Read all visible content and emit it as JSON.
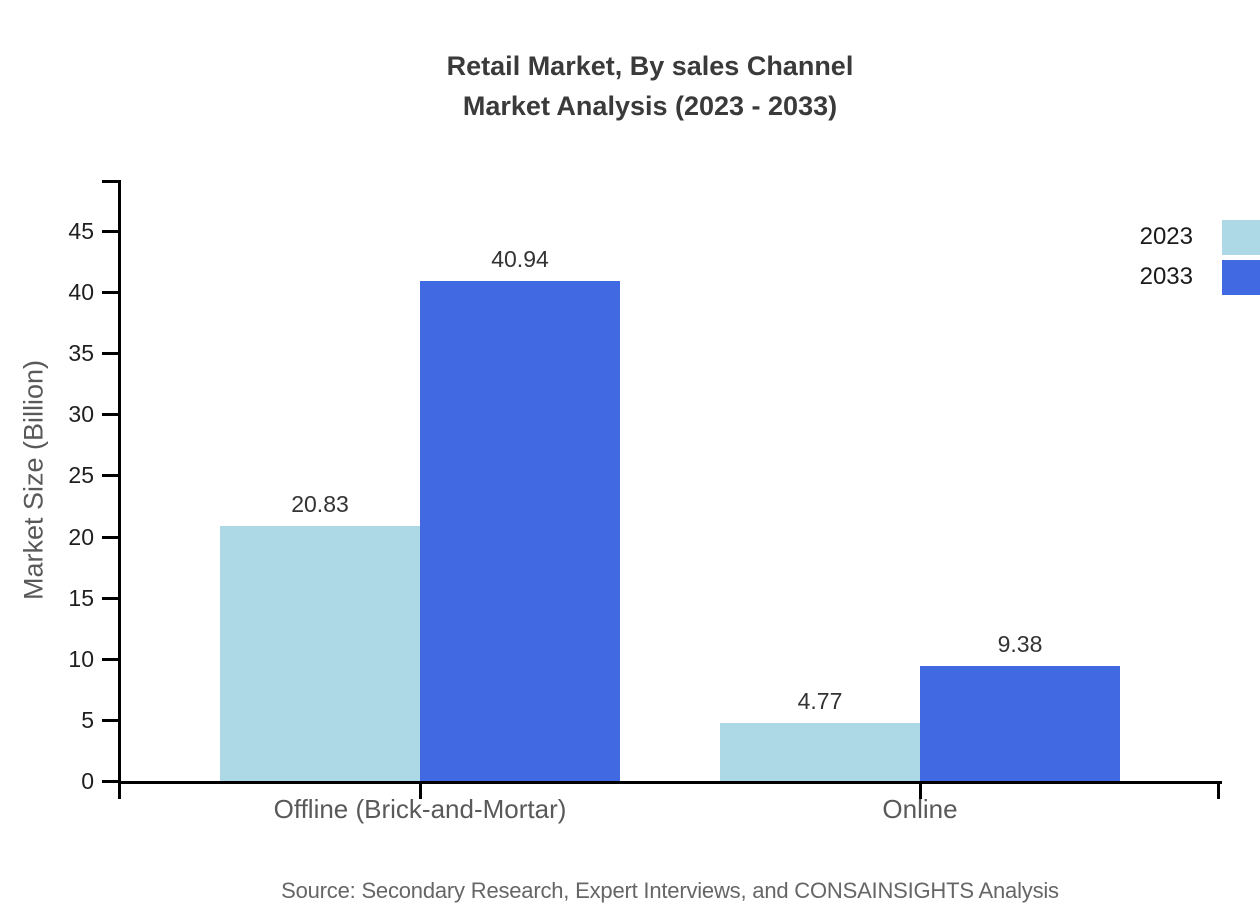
{
  "title": {
    "line1": "Retail Market, By sales Channel",
    "line2": "Market Analysis (2023 - 2033)"
  },
  "source": {
    "text": "Source: Secondary Research, Expert Interviews, and CONSAINSIGHTS Analysis"
  },
  "colors": {
    "series_2023": "#ADD8E6",
    "series_2033": "#4169E1",
    "axis": "#000000",
    "title_text": "#3A3A3A",
    "axis_title_text": "#595959",
    "tick_label_text": "#1F1F1F",
    "value_label_text": "#333333",
    "source_text": "#666666"
  },
  "chart_data": {
    "type": "bar",
    "title": "Retail Market, By sales Channel Market Analysis (2023 - 2033)",
    "categories": [
      "Offline (Brick-and-Mortar)",
      "Online"
    ],
    "series": [
      {
        "name": "2023",
        "color": "#ADD8E6",
        "values": [
          20.83,
          4.77
        ]
      },
      {
        "name": "2033",
        "color": "#4169E1",
        "values": [
          40.94,
          9.38
        ]
      }
    ],
    "value_labels": [
      [
        "20.83",
        "4.77"
      ],
      [
        "40.94",
        "9.38"
      ]
    ],
    "xlabel": "",
    "ylabel": "Market Size (Billion)",
    "ylim": [
      0,
      49
    ],
    "y_ticks": [
      0,
      5,
      10,
      15,
      20,
      25,
      30,
      35,
      40,
      45
    ],
    "grid": false,
    "legend_position": "top-right"
  }
}
